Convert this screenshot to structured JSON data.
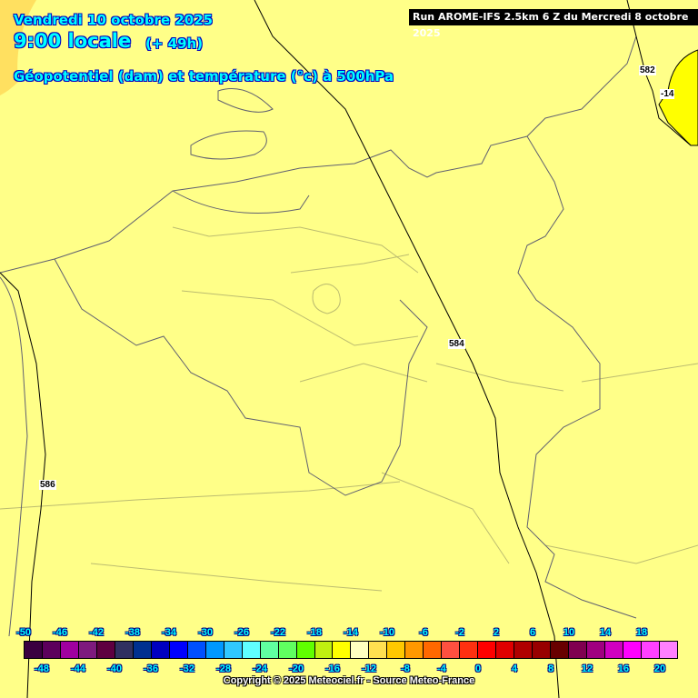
{
  "header": {
    "date": "Vendredi 10 octobre 2025",
    "time": "9:00 locale",
    "lead": "(+ 49h)",
    "parameter": "Géopotentiel (dam) et température (°c) à 500hPa",
    "run": "Run AROME-IFS 2.5km 6 Z du Mercredi 8 octobre 2025"
  },
  "map": {
    "background_color": "#ffff88",
    "contour_labels": [
      "582",
      "584",
      "586"
    ],
    "temperature_labels": [
      "-14"
    ]
  },
  "legend": {
    "top_labels": [
      "-50",
      "-46",
      "-42",
      "-38",
      "-34",
      "-30",
      "-26",
      "-22",
      "-18",
      "-14",
      "-10",
      "-6",
      "-2",
      "2",
      "6",
      "10",
      "14",
      "18"
    ],
    "bottom_labels": [
      "-48",
      "-44",
      "-40",
      "-36",
      "-32",
      "-28",
      "-24",
      "-20",
      "-16",
      "-12",
      "-8",
      "-4",
      "0",
      "4",
      "8",
      "12",
      "16",
      "20"
    ],
    "colors": [
      "#3a0040",
      "#5c005c",
      "#a000a0",
      "#7e1a7e",
      "#5e0040",
      "#303060",
      "#003090",
      "#0000c0",
      "#0000ff",
      "#0050ff",
      "#0098ff",
      "#30c8ff",
      "#60ffff",
      "#60ffa0",
      "#60ff60",
      "#60ff00",
      "#c0f010",
      "#ffff00",
      "#ffffc0",
      "#ffe050",
      "#ffc800",
      "#ff9800",
      "#ff6800",
      "#ff5040",
      "#ff3010",
      "#ff0000",
      "#e00000",
      "#b00000",
      "#980000",
      "#680000",
      "#800050",
      "#a00080",
      "#d000c0",
      "#ff00ff",
      "#ff40ff",
      "#ff80ff"
    ]
  },
  "footer": {
    "copyright": "Copyright © 2025 Meteociel.fr - Source Meteo-France"
  }
}
